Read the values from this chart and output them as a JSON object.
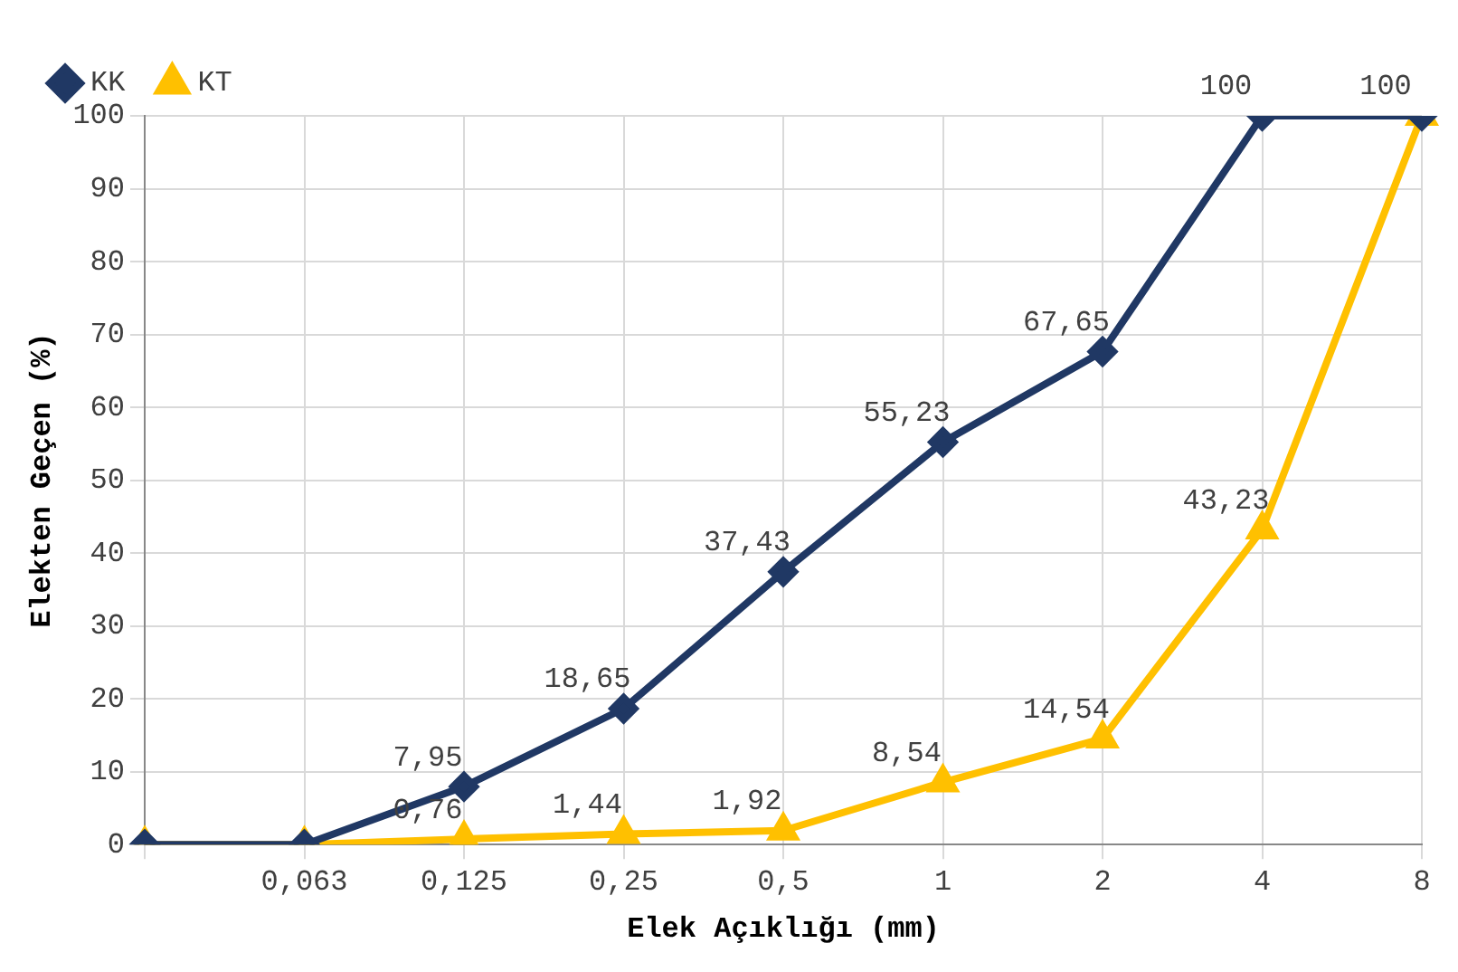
{
  "chart_data": {
    "type": "line",
    "xlabel": "Elek Açıklığı (mm)",
    "ylabel": "Elekten Geçen (%)",
    "categories": [
      null,
      "0,063",
      "0,125",
      "0,25",
      "0,5",
      "1",
      "2",
      "4",
      "8"
    ],
    "series": [
      {
        "name": "KK",
        "color": "#203864",
        "marker": "diamond",
        "values": [
          0,
          0,
          7.95,
          18.65,
          37.43,
          55.23,
          67.65,
          100,
          100
        ],
        "value_labels": [
          null,
          null,
          "7,95",
          "18,65",
          "37,43",
          "55,23",
          "67,65",
          "100",
          null
        ]
      },
      {
        "name": "KT",
        "color": "#ffc000",
        "marker": "triangle",
        "values": [
          0,
          0,
          0.76,
          1.44,
          1.92,
          8.54,
          14.54,
          43.23,
          100
        ],
        "value_labels": [
          null,
          null,
          "0,76",
          "1,44",
          "1,92",
          "8,54",
          "14,54",
          "43,23",
          "100"
        ]
      }
    ],
    "ylim": [
      0,
      100
    ],
    "yticks": [
      0,
      10,
      20,
      30,
      40,
      50,
      60,
      70,
      80,
      90,
      100
    ],
    "grid": true,
    "legend": "top left",
    "line_style": "solid"
  }
}
